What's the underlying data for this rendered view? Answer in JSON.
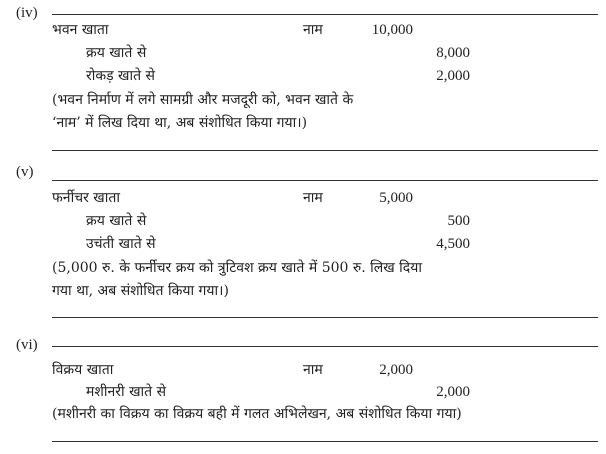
{
  "entries": [
    {
      "label": "(iv)",
      "debit_account": "भवन खाता",
      "dr_marker": "नाम",
      "debit_amount": "10,000",
      "credits": [
        {
          "account": "क्रय खाते से",
          "amount": "8,000"
        },
        {
          "account": "रोकड़ खाते से",
          "amount": "2,000"
        }
      ],
      "narration": [
        "(भवन निर्माण में लगे सामग्री और मजदूरी को, भवन खाते के",
        "‘नाम’ में लिख दिया था, अब संशोधित किया गया।)"
      ]
    },
    {
      "label": "(v)",
      "debit_account": "फर्नीचर खाता",
      "dr_marker": "नाम",
      "debit_amount": "5,000",
      "credits": [
        {
          "account": "क्रय खाते से",
          "amount": "500"
        },
        {
          "account": "उचंती खाते से",
          "amount": "4,500"
        }
      ],
      "narration": [
        "(5,000 रु. के फर्नीचर क्रय को त्रुटिवश क्रय खाते में 500 रु. लिख दिया",
        "गया था, अब संशोधित किया गया।)"
      ]
    },
    {
      "label": "(vi)",
      "debit_account": "विक्रय खाता",
      "dr_marker": "नाम",
      "debit_amount": "2,000",
      "credits": [
        {
          "account": "मशीनरी खाते से",
          "amount": "2,000"
        }
      ],
      "narration": [
        "(मशीनरी का विक्रय का विक्रय बही में गलत अभिलेखन, अब संशोधित किया गया)"
      ]
    }
  ]
}
